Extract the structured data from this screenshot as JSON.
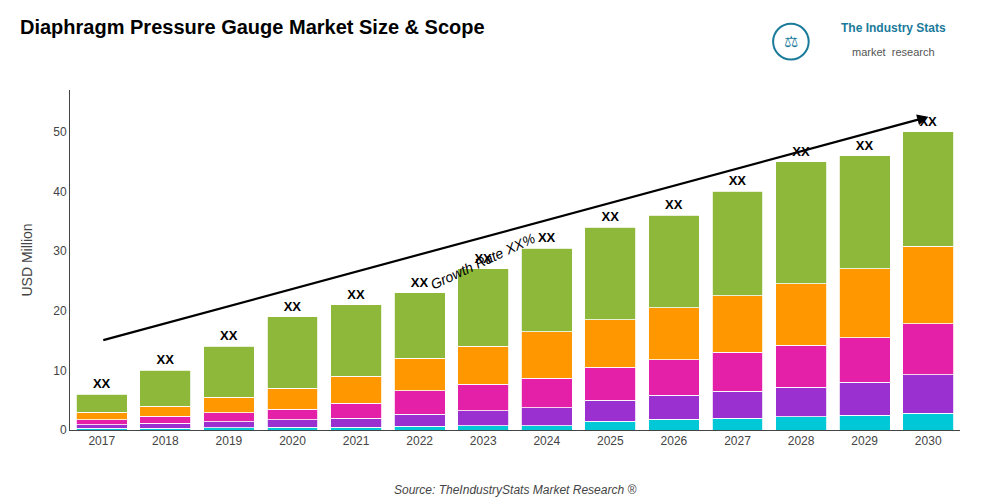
{
  "chart_data": {
    "type": "bar",
    "stacked": true,
    "title": "Diaphragm Pressure Gauge Market Size & Scope",
    "ylabel": "USD Million",
    "categories": [
      "2017",
      "2018",
      "2019",
      "2020",
      "2021",
      "2022",
      "2023",
      "2024",
      "2025",
      "2026",
      "2027",
      "2028",
      "2029",
      "2030"
    ],
    "series": [
      {
        "color": "#00c8d7",
        "values": [
          0.3,
          0.3,
          0.4,
          0.5,
          0.5,
          0.6,
          0.7,
          0.7,
          1.5,
          1.8,
          2.0,
          2.2,
          2.5,
          2.8
        ]
      },
      {
        "color": "#9b30d0",
        "values": [
          0.6,
          0.8,
          1.0,
          1.2,
          1.5,
          2.0,
          2.5,
          3.0,
          3.5,
          4.0,
          4.5,
          5.0,
          5.5,
          6.5
        ]
      },
      {
        "color": "#e520a8",
        "values": [
          0.8,
          1.2,
          1.5,
          1.8,
          2.5,
          4.0,
          4.5,
          5.0,
          5.5,
          6.0,
          6.5,
          7.0,
          7.5,
          8.5
        ]
      },
      {
        "color": "#ff9800",
        "values": [
          1.3,
          1.7,
          2.6,
          3.5,
          4.5,
          5.4,
          6.3,
          7.8,
          8.0,
          8.7,
          9.5,
          10.3,
          11.5,
          13.0
        ]
      },
      {
        "color": "#8db83a",
        "values": [
          3.0,
          6.0,
          8.5,
          12.0,
          12.0,
          11.0,
          13.0,
          14.0,
          15.5,
          15.5,
          17.5,
          20.5,
          19.0,
          19.2
        ]
      }
    ],
    "ylim": [
      0,
      57
    ],
    "yticks": [
      0,
      10,
      20,
      30,
      40,
      50
    ],
    "grid": false,
    "bar_label": "XX",
    "annotations": [
      {
        "text": "Growth Rate XX%",
        "x": "2023",
        "y": 34
      }
    ],
    "arrow": {
      "from": {
        "x": "2017",
        "y": 15.0
      },
      "to": {
        "x": "2030",
        "y": 52.5
      }
    },
    "source": "Source: TheIndustryStats Market Research ®",
    "logo": {
      "lines": [
        "The Industry Stats",
        "market  research"
      ],
      "icon": "⚖",
      "color": "#1a7a9a"
    }
  }
}
